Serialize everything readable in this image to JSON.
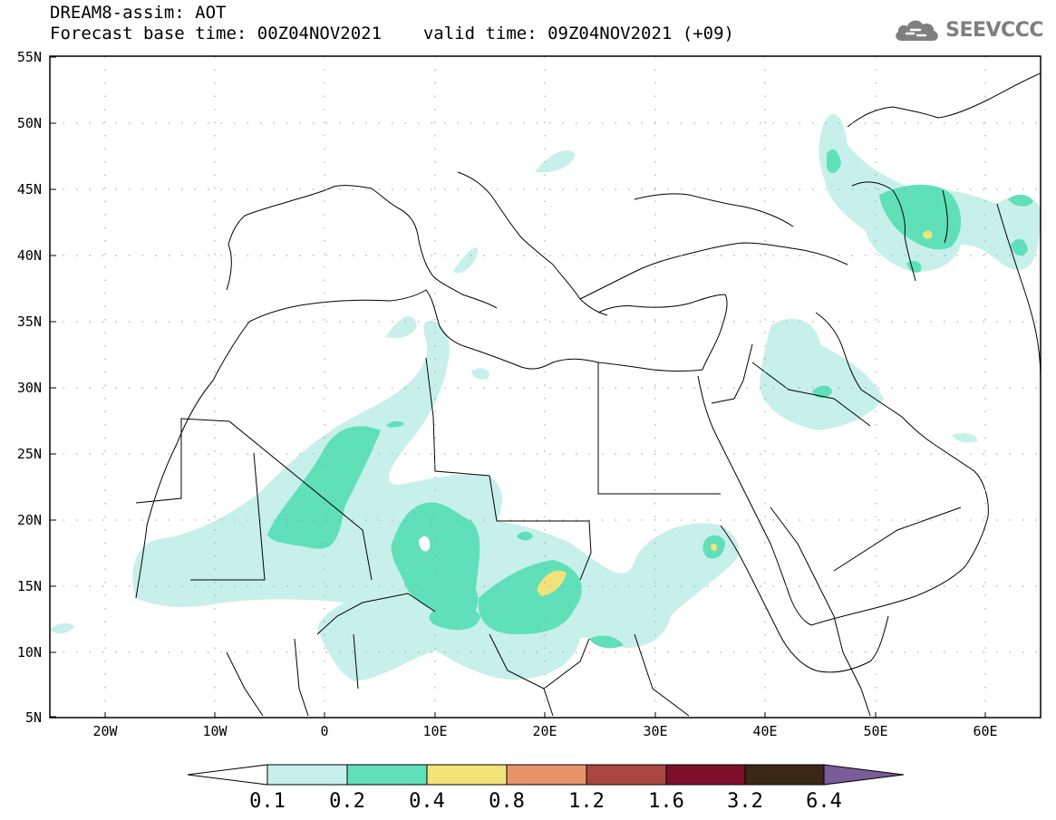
{
  "header": {
    "title": "DREAM8-assim: AOT",
    "base_time_label": "Forecast base time: 00Z04NOV2021",
    "valid_time_label": "valid time: 09Z04NOV2021 (+09)"
  },
  "logo": {
    "text": "SEEVCCC",
    "icon": "cloud-icon",
    "color": "#7f7f7f"
  },
  "map": {
    "region": "North Africa, Mediterranean and Middle East",
    "lon_range": [
      -25,
      65
    ],
    "lat_range": [
      5,
      55
    ],
    "lat_labels": [
      "55N",
      "50N",
      "45N",
      "40N",
      "35N",
      "30N",
      "25N",
      "20N",
      "15N",
      "10N",
      "5N"
    ],
    "lon_labels": [
      "20W",
      "10W",
      "0",
      "10E",
      "20E",
      "30E",
      "40E",
      "50E",
      "60E"
    ],
    "grid": "dotted"
  },
  "colorbar": {
    "boundaries": [
      "0.1",
      "0.2",
      "0.4",
      "0.8",
      "1.2",
      "1.6",
      "3.2",
      "6.4"
    ],
    "colors": [
      "#ffffff",
      "#c8f0ea",
      "#5fe0b9",
      "#f1e37a",
      "#e8946a",
      "#a9473e",
      "#7d0f2a",
      "#3b2716",
      "#7a5c99"
    ]
  }
}
